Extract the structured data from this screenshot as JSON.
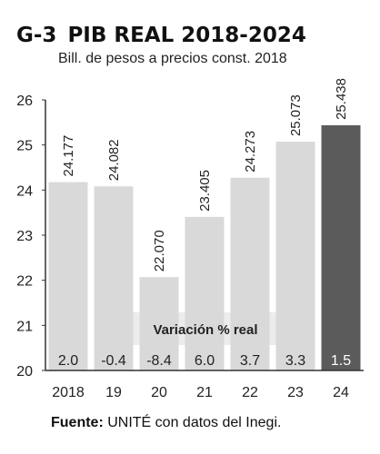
{
  "figure": {
    "number": "G-3",
    "title": "PIB REAL 2018-2024",
    "subtitle": "Bill. de pesos a precios const. 2018",
    "source_label": "Fuente:",
    "source_text": " UNITÉ con datos del Inegi."
  },
  "chart_data": {
    "type": "bar",
    "title": "PIB REAL 2018-2024",
    "subtitle": "Bill. de pesos a precios const. 2018",
    "categories": [
      "2018",
      "19",
      "20",
      "21",
      "22",
      "23",
      "24"
    ],
    "values": [
      24.177,
      24.082,
      22.07,
      23.405,
      24.273,
      25.073,
      25.438
    ],
    "value_labels": [
      "24.177",
      "24.082",
      "22.070",
      "23.405",
      "24.273",
      "25.073",
      "25.438"
    ],
    "variation_title": "Variación % real",
    "variation_labels": [
      "2.0",
      "-0.4",
      "-8.4",
      "6.0",
      "3.7",
      "3.3",
      "1.5"
    ],
    "yticks": [
      "20",
      "21",
      "22",
      "23",
      "24",
      "25",
      "26"
    ],
    "ylim": [
      20,
      26
    ],
    "xlabel": "",
    "ylabel": "",
    "grid": false,
    "colors": {
      "bar": "#d9d9d9",
      "bar_highlight": "#5b5b5b",
      "band": "#ececec",
      "axis": "#333333",
      "text": "#222222"
    }
  }
}
